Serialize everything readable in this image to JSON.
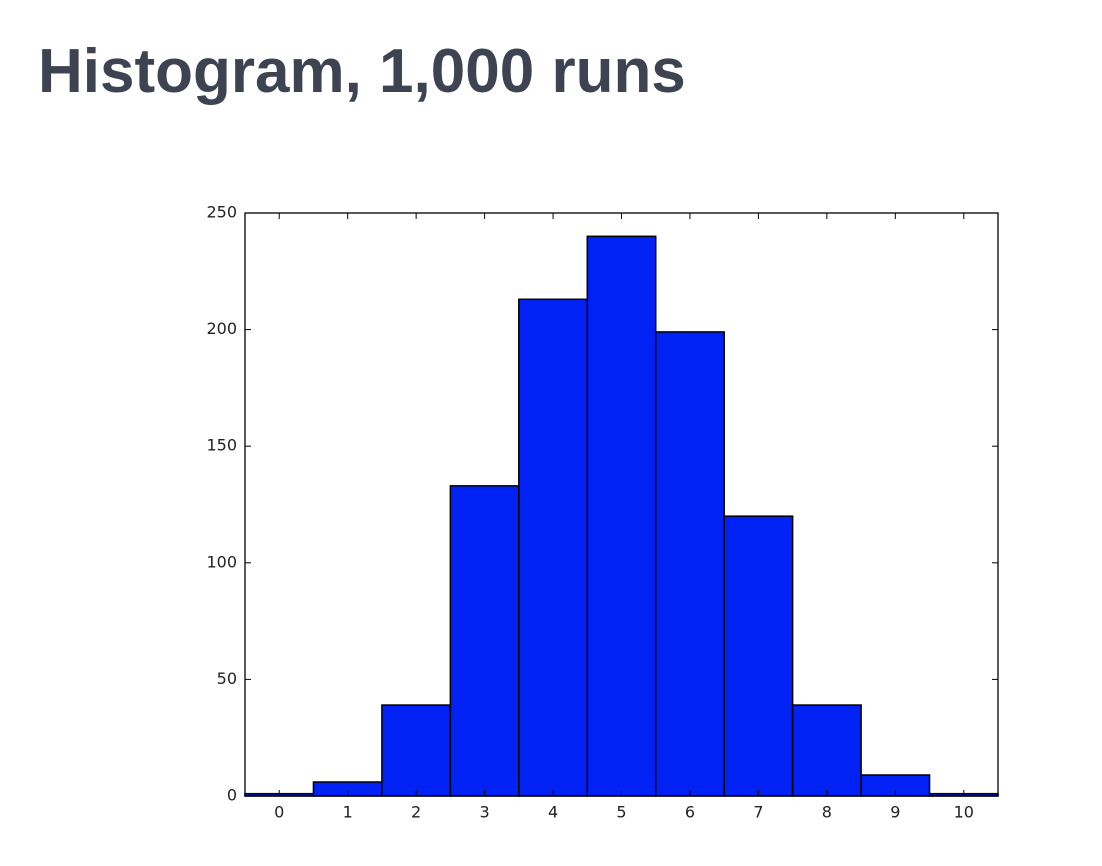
{
  "chart_data": {
    "type": "histogram",
    "title": "Histogram, 1,000 runs",
    "bins": [
      -0.5,
      0.5,
      1.5,
      2.5,
      3.5,
      4.5,
      5.5,
      6.5,
      7.5,
      8.5,
      9.5,
      10.5
    ],
    "values": [
      1,
      6,
      39,
      133,
      213,
      240,
      199,
      120,
      39,
      9,
      1
    ],
    "color": "#0022f5",
    "edgecolor": "#000000",
    "xlim": [
      -0.5,
      10.5
    ],
    "xticks": [
      0,
      1,
      2,
      3,
      4,
      5,
      6,
      7,
      8,
      9,
      10
    ],
    "ylim": [
      0,
      250
    ],
    "yticks": [
      0,
      50,
      100,
      150,
      200,
      250
    ],
    "grid": false
  }
}
